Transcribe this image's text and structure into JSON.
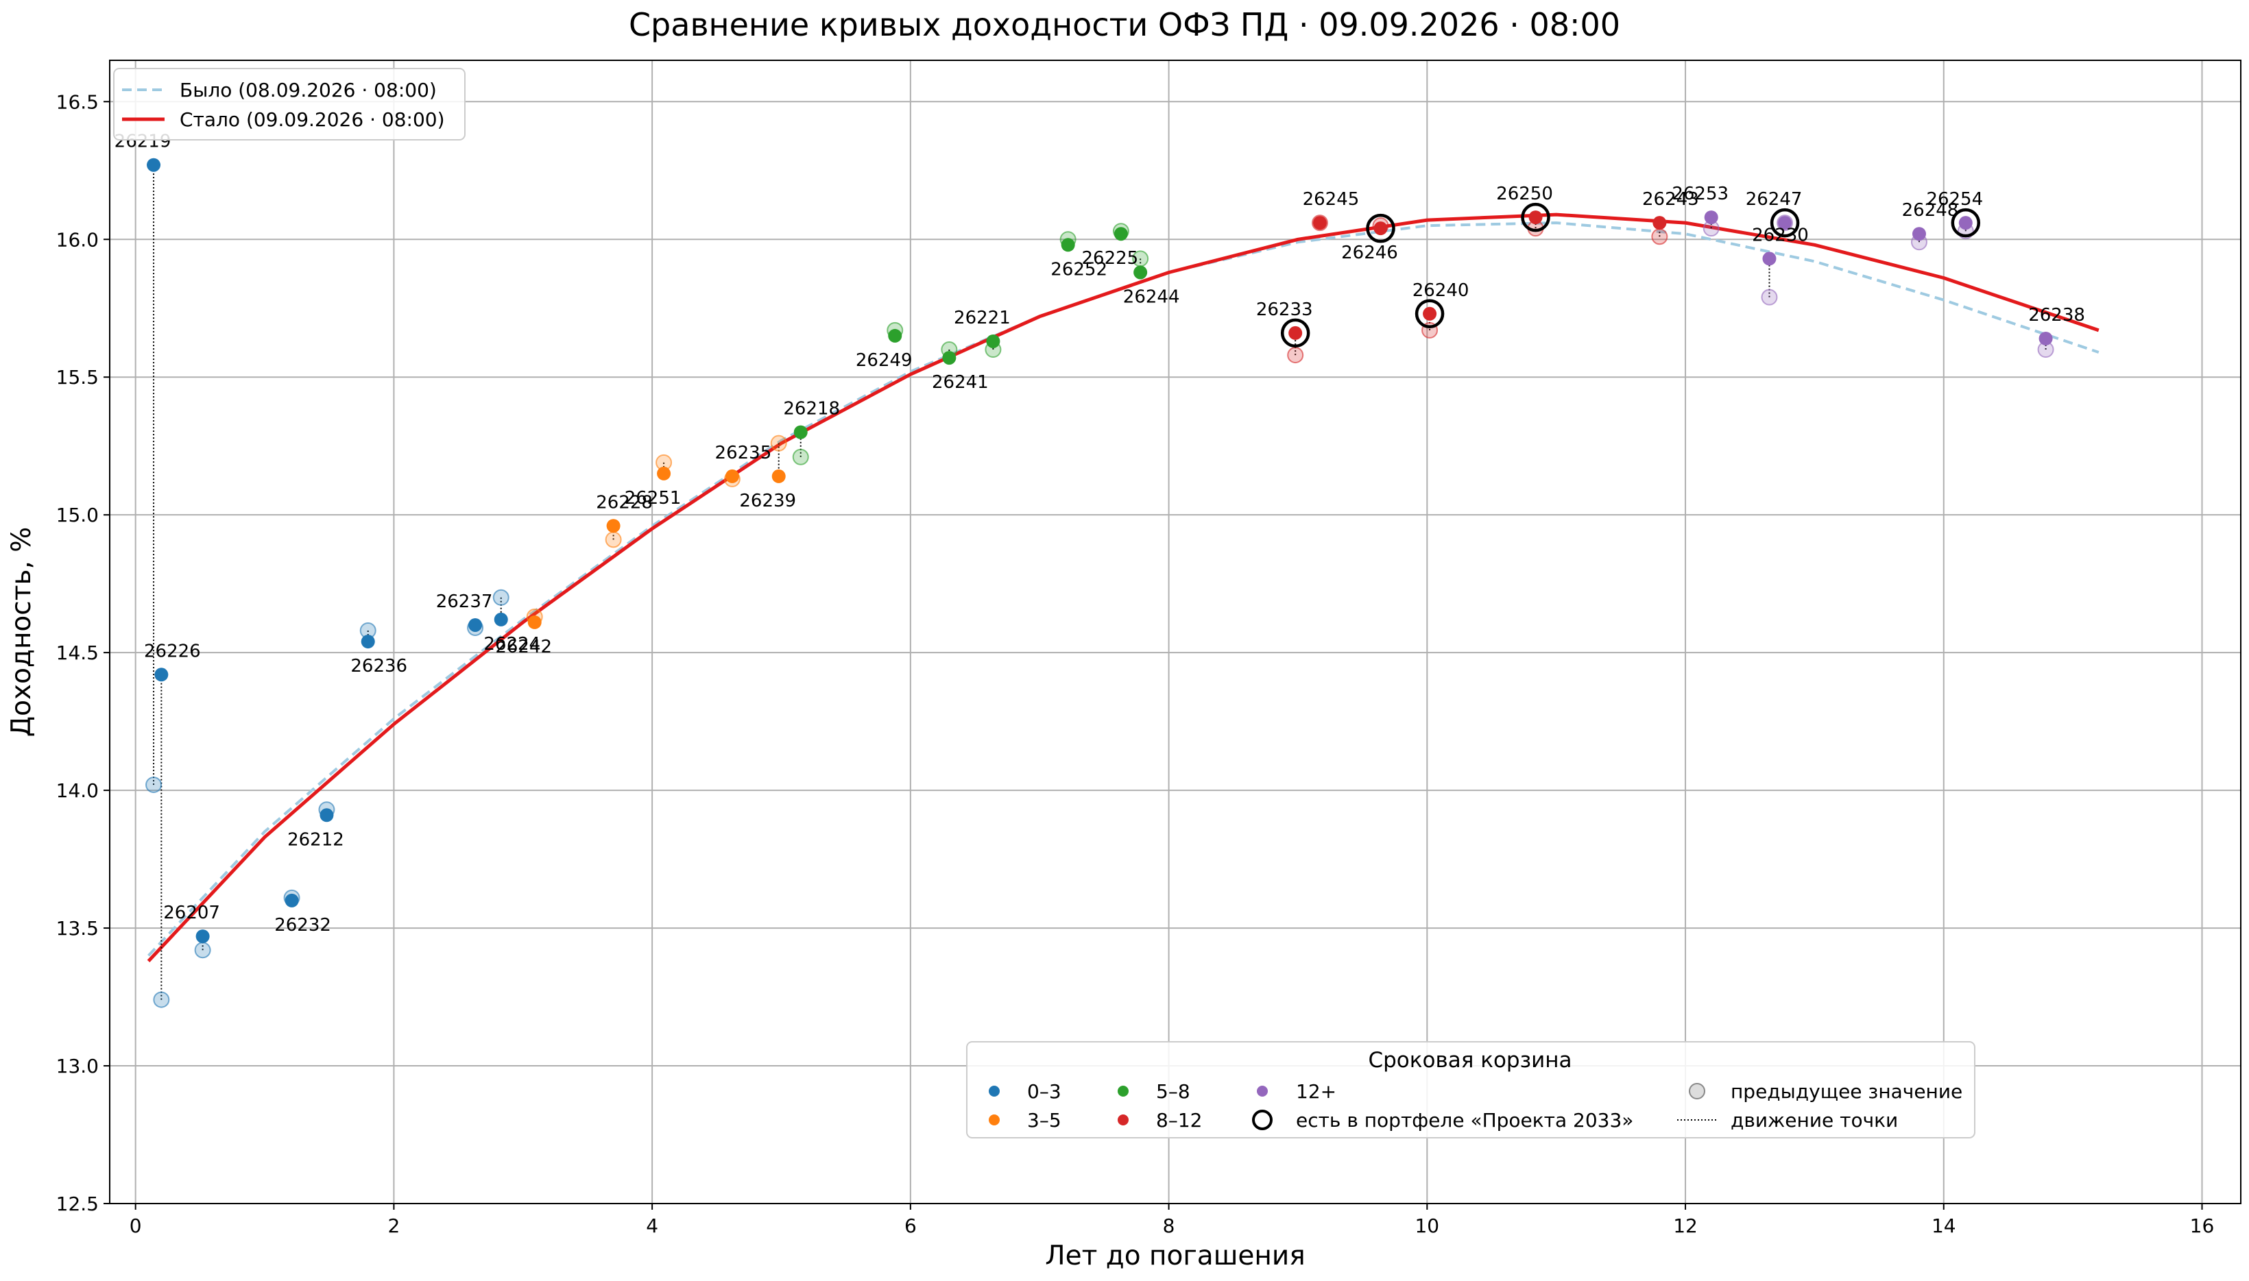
{
  "chart_data": {
    "type": "scatter",
    "title": "Сравнение кривых доходности ОФЗ ПД · 09.09.2026 · 08:00",
    "xlabel": "Лет до погашения",
    "ylabel": "Доходность, %",
    "xlim": [
      -0.2,
      16.3
    ],
    "ylim": [
      12.5,
      16.65
    ],
    "xticks": [
      0,
      2,
      4,
      6,
      8,
      10,
      12,
      14,
      16
    ],
    "yticks": [
      12.5,
      13.0,
      13.5,
      14.0,
      14.5,
      15.0,
      15.5,
      16.0,
      16.5
    ],
    "grid": true,
    "colors": {
      "curve_before": "#9ecae1",
      "curve_after": "#e31a1c",
      "bucket_0_3": "#1f77b4",
      "bucket_3_5": "#ff7f0e",
      "bucket_5_8": "#2ca02c",
      "bucket_8_12": "#d62728",
      "bucket_12_plus": "#9467bd"
    },
    "curves": [
      {
        "name": "Было (08.09.2026 · 08:00)",
        "style": "dashed",
        "color": "#9ecae1",
        "x": [
          0.1,
          1,
          2,
          3,
          4,
          5,
          6,
          7,
          8,
          9,
          10,
          11,
          12,
          13,
          14,
          15.2
        ],
        "y": [
          13.4,
          13.85,
          14.26,
          14.62,
          14.96,
          15.27,
          15.52,
          15.72,
          15.88,
          15.99,
          16.05,
          16.06,
          16.02,
          15.92,
          15.78,
          15.59
        ]
      },
      {
        "name": "Стало (09.09.2026 · 08:00)",
        "style": "solid",
        "color": "#e31a1c",
        "x": [
          0.1,
          1,
          2,
          3,
          4,
          5,
          6,
          7,
          8,
          9,
          10,
          11,
          12,
          13,
          14,
          15.2
        ],
        "y": [
          13.38,
          13.83,
          14.24,
          14.61,
          14.95,
          15.26,
          15.51,
          15.72,
          15.88,
          16.0,
          16.07,
          16.09,
          16.06,
          15.98,
          15.86,
          15.67
        ]
      }
    ],
    "bonds": [
      {
        "id": "26219",
        "bucket": "0–3",
        "x": 0.14,
        "y_prev": 14.02,
        "y": 16.27,
        "portfolio": false
      },
      {
        "id": "26226",
        "bucket": "0–3",
        "x": 0.2,
        "y_prev": 13.24,
        "y": 14.42,
        "portfolio": false
      },
      {
        "id": "26207",
        "bucket": "0–3",
        "x": 0.52,
        "y_prev": 13.42,
        "y": 13.47,
        "portfolio": false
      },
      {
        "id": "26232",
        "bucket": "0–3",
        "x": 1.21,
        "y_prev": 13.61,
        "y": 13.6,
        "portfolio": false
      },
      {
        "id": "26212",
        "bucket": "0–3",
        "x": 1.48,
        "y_prev": 13.93,
        "y": 13.91,
        "portfolio": false
      },
      {
        "id": "26236",
        "bucket": "0–3",
        "x": 1.8,
        "y_prev": 14.58,
        "y": 14.54,
        "portfolio": false
      },
      {
        "id": "26237",
        "bucket": "0–3",
        "x": 2.63,
        "y_prev": 14.59,
        "y": 14.6,
        "portfolio": false
      },
      {
        "id": "26224",
        "bucket": "0–3",
        "x": 2.83,
        "y_prev": 14.7,
        "y": 14.62,
        "portfolio": false
      },
      {
        "id": "26242",
        "bucket": "3–5",
        "x": 3.09,
        "y_prev": 14.63,
        "y": 14.61,
        "portfolio": false
      },
      {
        "id": "26228",
        "bucket": "3–5",
        "x": 3.7,
        "y_prev": 14.91,
        "y": 14.96,
        "portfolio": false
      },
      {
        "id": "26251",
        "bucket": "3–5",
        "x": 4.09,
        "y_prev": 15.19,
        "y": 15.15,
        "portfolio": false
      },
      {
        "id": "26235",
        "bucket": "3–5",
        "x": 4.62,
        "y_prev": 15.13,
        "y": 15.14,
        "portfolio": false
      },
      {
        "id": "26239",
        "bucket": "3–5",
        "x": 4.98,
        "y_prev": 15.26,
        "y": 15.14,
        "portfolio": false
      },
      {
        "id": "26218",
        "bucket": "5–8",
        "x": 5.15,
        "y_prev": 15.21,
        "y": 15.3,
        "portfolio": false
      },
      {
        "id": "26249",
        "bucket": "5–8",
        "x": 5.88,
        "y_prev": 15.67,
        "y": 15.65,
        "portfolio": false
      },
      {
        "id": "26241",
        "bucket": "5–8",
        "x": 6.3,
        "y_prev": 15.6,
        "y": 15.57,
        "portfolio": false
      },
      {
        "id": "26221",
        "bucket": "5–8",
        "x": 6.64,
        "y_prev": 15.6,
        "y": 15.63,
        "portfolio": false
      },
      {
        "id": "26252",
        "bucket": "5–8",
        "x": 7.22,
        "y_prev": 16.0,
        "y": 15.98,
        "portfolio": false
      },
      {
        "id": "26225",
        "bucket": "5–8",
        "x": 7.63,
        "y_prev": 16.03,
        "y": 16.02,
        "portfolio": false
      },
      {
        "id": "26244",
        "bucket": "5–8",
        "x": 7.78,
        "y_prev": 15.93,
        "y": 15.88,
        "portfolio": false
      },
      {
        "id": "26233",
        "bucket": "8–12",
        "x": 8.98,
        "y_prev": 15.58,
        "y": 15.66,
        "portfolio": true
      },
      {
        "id": "26245",
        "bucket": "8–12",
        "x": 9.17,
        "y_prev": 16.06,
        "y": 16.06,
        "portfolio": false
      },
      {
        "id": "26246",
        "bucket": "8–12",
        "x": 9.64,
        "y_prev": 16.05,
        "y": 16.04,
        "portfolio": true
      },
      {
        "id": "26240",
        "bucket": "8–12",
        "x": 10.02,
        "y_prev": 15.67,
        "y": 15.73,
        "portfolio": true
      },
      {
        "id": "26250",
        "bucket": "8–12",
        "x": 10.84,
        "y_prev": 16.04,
        "y": 16.08,
        "portfolio": true
      },
      {
        "id": "26243",
        "bucket": "8–12",
        "x": 11.8,
        "y_prev": 16.01,
        "y": 16.06,
        "portfolio": false
      },
      {
        "id": "26253",
        "bucket": "12+",
        "x": 12.2,
        "y_prev": 16.04,
        "y": 16.08,
        "portfolio": false
      },
      {
        "id": "26230",
        "bucket": "12+",
        "x": 12.65,
        "y_prev": 15.79,
        "y": 15.93,
        "portfolio": false
      },
      {
        "id": "26247",
        "bucket": "12+",
        "x": 12.77,
        "y_prev": 16.06,
        "y": 16.06,
        "portfolio": true
      },
      {
        "id": "26248",
        "bucket": "12+",
        "x": 13.81,
        "y_prev": 15.99,
        "y": 16.02,
        "portfolio": false
      },
      {
        "id": "26254",
        "bucket": "12+",
        "x": 14.17,
        "y_prev": 16.03,
        "y": 16.06,
        "portfolio": true
      },
      {
        "id": "26238",
        "bucket": "12+",
        "x": 14.79,
        "y_prev": 15.6,
        "y": 15.64,
        "portfolio": false
      }
    ],
    "legend_curves": {
      "placement": "top-left",
      "entries": [
        "Было (08.09.2026 · 08:00)",
        "Стало (09.09.2026 · 08:00)"
      ]
    },
    "legend_buckets": {
      "title": "Сроковая корзина",
      "placement": "lower-right",
      "entries": [
        "0–3",
        "3–5",
        "5–8",
        "8–12",
        "12+",
        "есть в портфеле «Проекта 2033»",
        "предыдущее значение",
        "движение точки"
      ]
    }
  }
}
